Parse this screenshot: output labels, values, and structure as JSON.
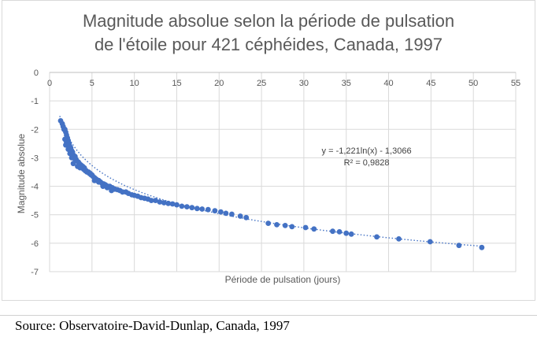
{
  "chart_data": {
    "type": "scatter",
    "title_lines": [
      "Magnitude absolue selon la période de pulsation",
      "de l'étoile pour 421 céphéides, Canada, 1997"
    ],
    "xlabel": "Période de pulsation (jours)",
    "ylabel": "Magnitude absolue",
    "xlim": [
      0,
      55
    ],
    "ylim": [
      -7,
      0
    ],
    "x_ticks": [
      "0",
      "5",
      "10",
      "15",
      "20",
      "25",
      "30",
      "35",
      "40",
      "45",
      "50",
      "55"
    ],
    "y_ticks": [
      "0",
      "-1",
      "-2",
      "-3",
      "-4",
      "-5",
      "-6",
      "-7"
    ],
    "grid": true,
    "marker_color": "#4472c4",
    "trendline": {
      "type": "logarithmic",
      "a": -1.221,
      "b": -1.3066,
      "equation": "y = -1,221ln(x) - 1,3066",
      "r_squared": "R² = 0,9828"
    },
    "points": [
      [
        1.3,
        -1.7
      ],
      [
        1.5,
        -1.8
      ],
      [
        1.6,
        -1.9
      ],
      [
        1.8,
        -2.0
      ],
      [
        1.9,
        -2.1
      ],
      [
        1.7,
        -2.0
      ],
      [
        2.0,
        -2.2
      ],
      [
        2.1,
        -2.3
      ],
      [
        2.0,
        -2.45
      ],
      [
        1.8,
        -2.35
      ],
      [
        1.9,
        -2.55
      ],
      [
        2.2,
        -2.4
      ],
      [
        2.3,
        -2.5
      ],
      [
        2.4,
        -2.6
      ],
      [
        2.2,
        -2.7
      ],
      [
        2.5,
        -2.65
      ],
      [
        2.6,
        -2.75
      ],
      [
        2.4,
        -2.85
      ],
      [
        2.7,
        -2.8
      ],
      [
        2.8,
        -2.9
      ],
      [
        3.0,
        -2.95
      ],
      [
        2.9,
        -3.0
      ],
      [
        3.1,
        -3.05
      ],
      [
        3.2,
        -3.1
      ],
      [
        2.8,
        -3.2
      ],
      [
        3.4,
        -3.15
      ],
      [
        3.5,
        -3.2
      ],
      [
        3.3,
        -3.3
      ],
      [
        3.7,
        -3.25
      ],
      [
        3.6,
        -3.35
      ],
      [
        3.9,
        -3.3
      ],
      [
        4.0,
        -3.4
      ],
      [
        3.0,
        -3.05
      ],
      [
        4.1,
        -3.35
      ],
      [
        4.3,
        -3.45
      ],
      [
        4.4,
        -3.5
      ],
      [
        4.6,
        -3.5
      ],
      [
        4.7,
        -3.55
      ],
      [
        4.9,
        -3.6
      ],
      [
        5.0,
        -3.6
      ],
      [
        5.1,
        -3.65
      ],
      [
        5.3,
        -3.7
      ],
      [
        5.5,
        -3.75
      ],
      [
        5.6,
        -3.8
      ],
      [
        5.8,
        -3.8
      ],
      [
        6.0,
        -3.85
      ],
      [
        6.2,
        -3.9
      ],
      [
        6.4,
        -3.92
      ],
      [
        6.6,
        -3.95
      ],
      [
        6.9,
        -4.0
      ],
      [
        7.1,
        -4.0
      ],
      [
        7.4,
        -4.05
      ],
      [
        7.7,
        -4.1
      ],
      [
        8.0,
        -4.12
      ],
      [
        8.3,
        -4.15
      ],
      [
        8.6,
        -4.2
      ],
      [
        9.0,
        -4.2
      ],
      [
        9.3,
        -4.25
      ],
      [
        9.7,
        -4.3
      ],
      [
        10.0,
        -4.32
      ],
      [
        10.4,
        -4.35
      ],
      [
        10.8,
        -4.4
      ],
      [
        11.2,
        -4.42
      ],
      [
        11.6,
        -4.45
      ],
      [
        12.0,
        -4.5
      ],
      [
        12.5,
        -4.5
      ],
      [
        13.0,
        -4.55
      ],
      [
        13.5,
        -4.58
      ],
      [
        14.0,
        -4.6
      ],
      [
        14.5,
        -4.62
      ],
      [
        15.0,
        -4.65
      ],
      [
        15.6,
        -4.7
      ],
      [
        16.2,
        -4.72
      ],
      [
        16.8,
        -4.75
      ],
      [
        17.4,
        -4.78
      ],
      [
        18.0,
        -4.8
      ],
      [
        18.7,
        -4.82
      ],
      [
        19.5,
        -4.86
      ],
      [
        20.2,
        -4.9
      ],
      [
        20.8,
        -4.95
      ],
      [
        21.5,
        -4.98
      ],
      [
        22.5,
        -5.05
      ],
      [
        23.2,
        -5.1
      ],
      [
        5.3,
        -3.8
      ],
      [
        5.8,
        -3.85
      ],
      [
        6.3,
        -4.0
      ],
      [
        6.8,
        -4.05
      ],
      [
        7.3,
        -4.15
      ],
      [
        4.2,
        -3.45
      ],
      [
        4.8,
        -3.55
      ],
      [
        3.8,
        -3.3
      ],
      [
        2.6,
        -3.0
      ],
      [
        2.3,
        -2.55
      ],
      [
        25.8,
        -5.3
      ],
      [
        26.8,
        -5.35
      ],
      [
        27.8,
        -5.38
      ],
      [
        28.6,
        -5.42
      ],
      [
        30.2,
        -5.45
      ],
      [
        31.2,
        -5.5
      ],
      [
        33.4,
        -5.58
      ],
      [
        34.2,
        -5.6
      ],
      [
        35.0,
        -5.65
      ],
      [
        35.6,
        -5.68
      ],
      [
        38.6,
        -5.78
      ],
      [
        41.2,
        -5.85
      ],
      [
        44.9,
        -5.95
      ],
      [
        48.3,
        -6.08
      ],
      [
        51.0,
        -6.15
      ]
    ]
  },
  "source": "Source: Observatoire-David-Dunlap, Canada, 1997"
}
